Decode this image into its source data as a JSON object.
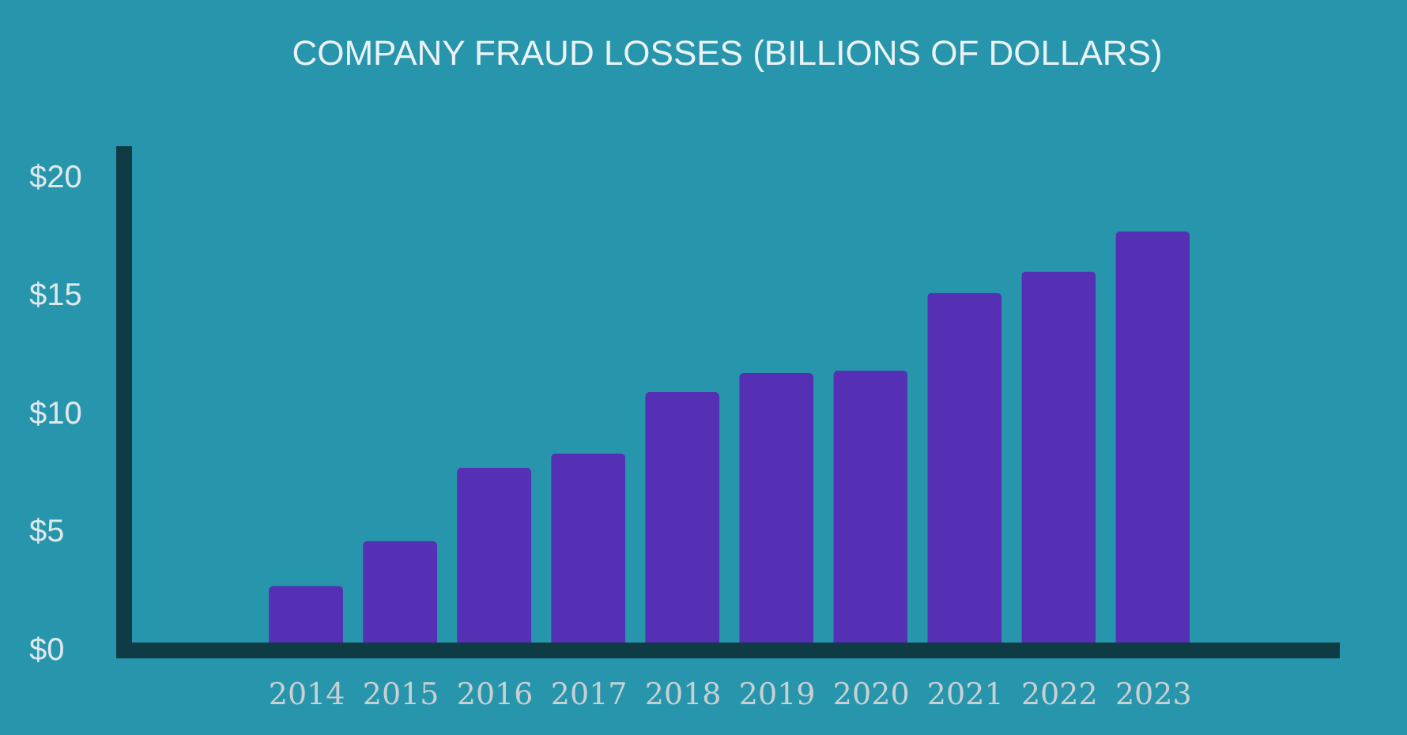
{
  "chart_data": {
    "type": "bar",
    "title": "COMPANY FRAUD LOSSES (BILLIONS OF DOLLARS)",
    "categories": [
      "2014",
      "2015",
      "2016",
      "2017",
      "2018",
      "2019",
      "2020",
      "2021",
      "2022",
      "2023"
    ],
    "values": [
      2.7,
      4.6,
      7.7,
      8.3,
      10.9,
      11.7,
      11.8,
      15.1,
      16.0,
      17.7
    ],
    "color": "#5530b5",
    "ylim": [
      0,
      21
    ],
    "yticks": [
      {
        "value": 0,
        "label": "$0"
      },
      {
        "value": 5,
        "label": "$5"
      },
      {
        "value": 10,
        "label": "$10"
      },
      {
        "value": 15,
        "label": "$15"
      },
      {
        "value": 20,
        "label": "$20"
      }
    ]
  }
}
